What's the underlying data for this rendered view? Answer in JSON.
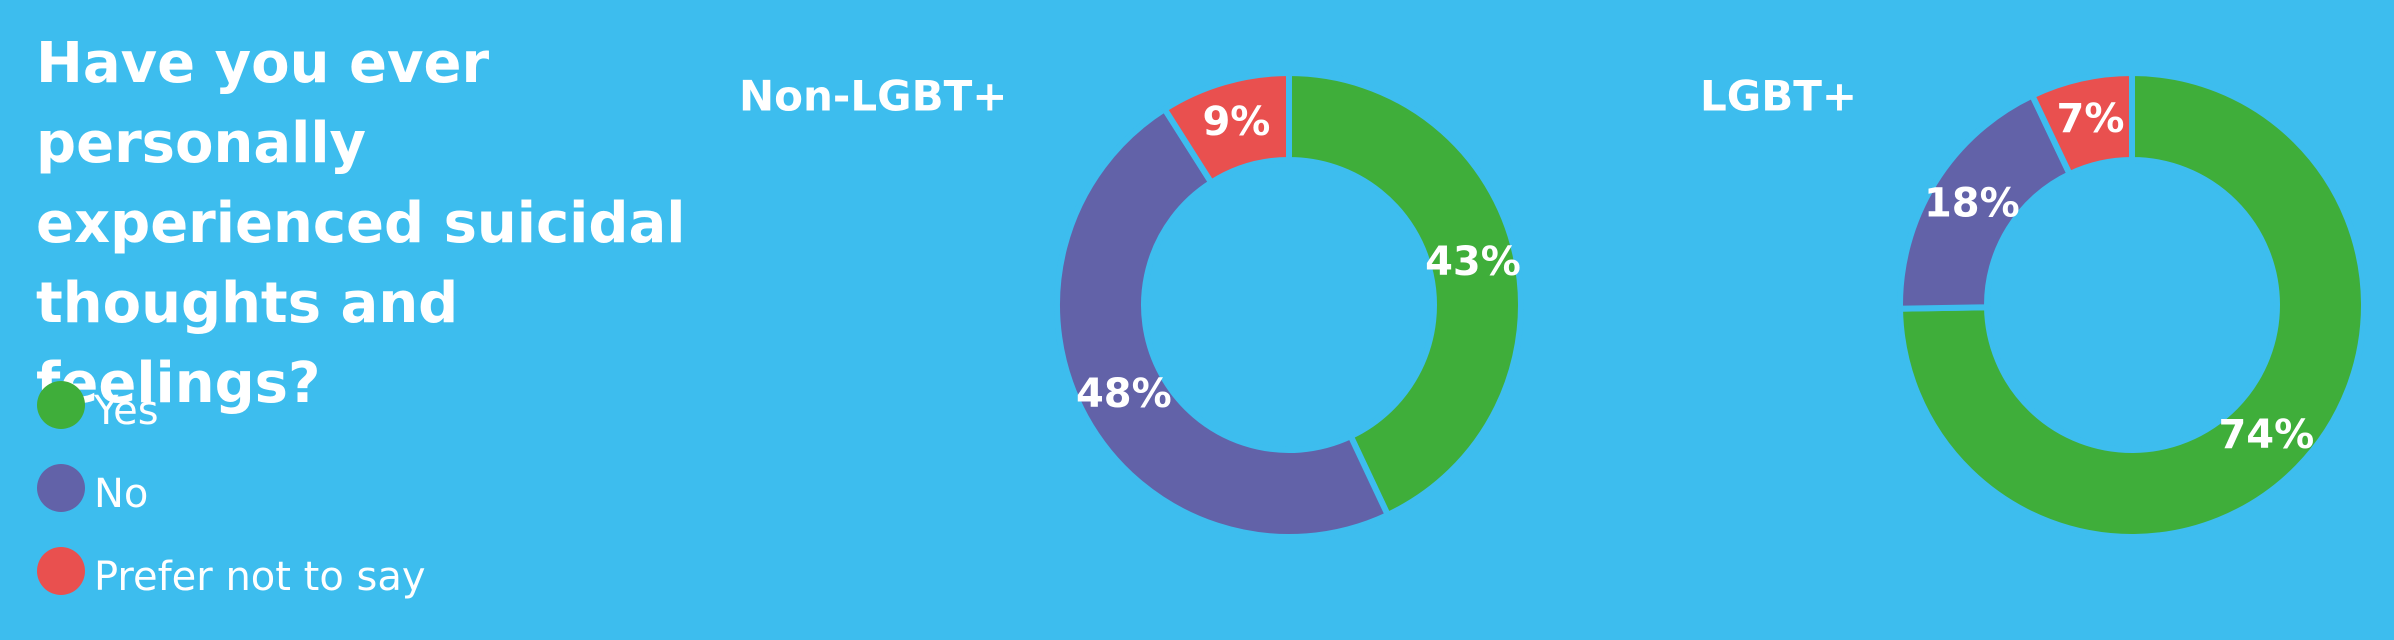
{
  "title": "Have you ever personally experienced suicidal thoughts and feelings?",
  "chart_data": [
    {
      "type": "donut",
      "title": "Non-LGBT+",
      "categories": [
        "Yes",
        "No",
        "Prefer not to say"
      ],
      "values": [
        43,
        48,
        9
      ],
      "value_labels": [
        "43%",
        "48%",
        "9%"
      ],
      "colors": [
        "#3fae3a",
        "#6262a8",
        "#e9504f"
      ]
    },
    {
      "type": "donut",
      "title": "LGBT+",
      "categories": [
        "Yes",
        "No",
        "Prefer not to say"
      ],
      "values": [
        74,
        18,
        7
      ],
      "value_labels": [
        "74%",
        "18%",
        "7%"
      ],
      "colors": [
        "#3fae3a",
        "#6262a8",
        "#e9504f"
      ]
    }
  ]
}
